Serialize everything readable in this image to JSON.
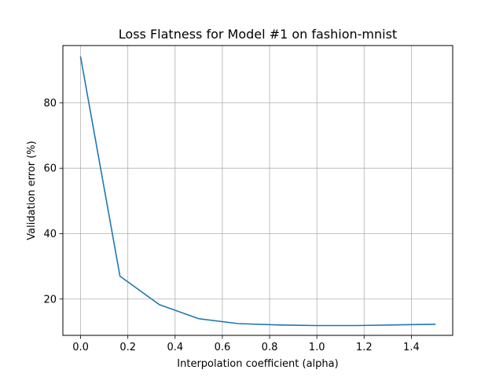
{
  "chart_data": {
    "type": "line",
    "title": "Loss Flatness for Model #1 on fashion-mnist",
    "xlabel": "Interpolation coefficient (alpha)",
    "ylabel": "Validation error (%)",
    "xlim": [
      -0.075,
      1.575
    ],
    "ylim": [
      8.9,
      97.5
    ],
    "xticks": [
      0.0,
      0.2,
      0.4,
      0.6,
      0.8,
      1.0,
      1.2,
      1.4
    ],
    "xtick_labels": [
      "0.0",
      "0.2",
      "0.4",
      "0.6",
      "0.8",
      "1.0",
      "1.2",
      "1.4"
    ],
    "yticks": [
      20,
      40,
      60,
      80
    ],
    "ytick_labels": [
      "20",
      "40",
      "60",
      "80"
    ],
    "grid": true,
    "series": [
      {
        "color": "#1f77b4",
        "x": [
          0.0,
          0.1667,
          0.3333,
          0.5,
          0.6667,
          0.8333,
          1.0,
          1.1667,
          1.3333,
          1.5
        ],
        "y": [
          94.0,
          27.0,
          18.3,
          14.0,
          12.5,
          12.1,
          11.9,
          11.9,
          12.1,
          12.3
        ]
      }
    ]
  }
}
